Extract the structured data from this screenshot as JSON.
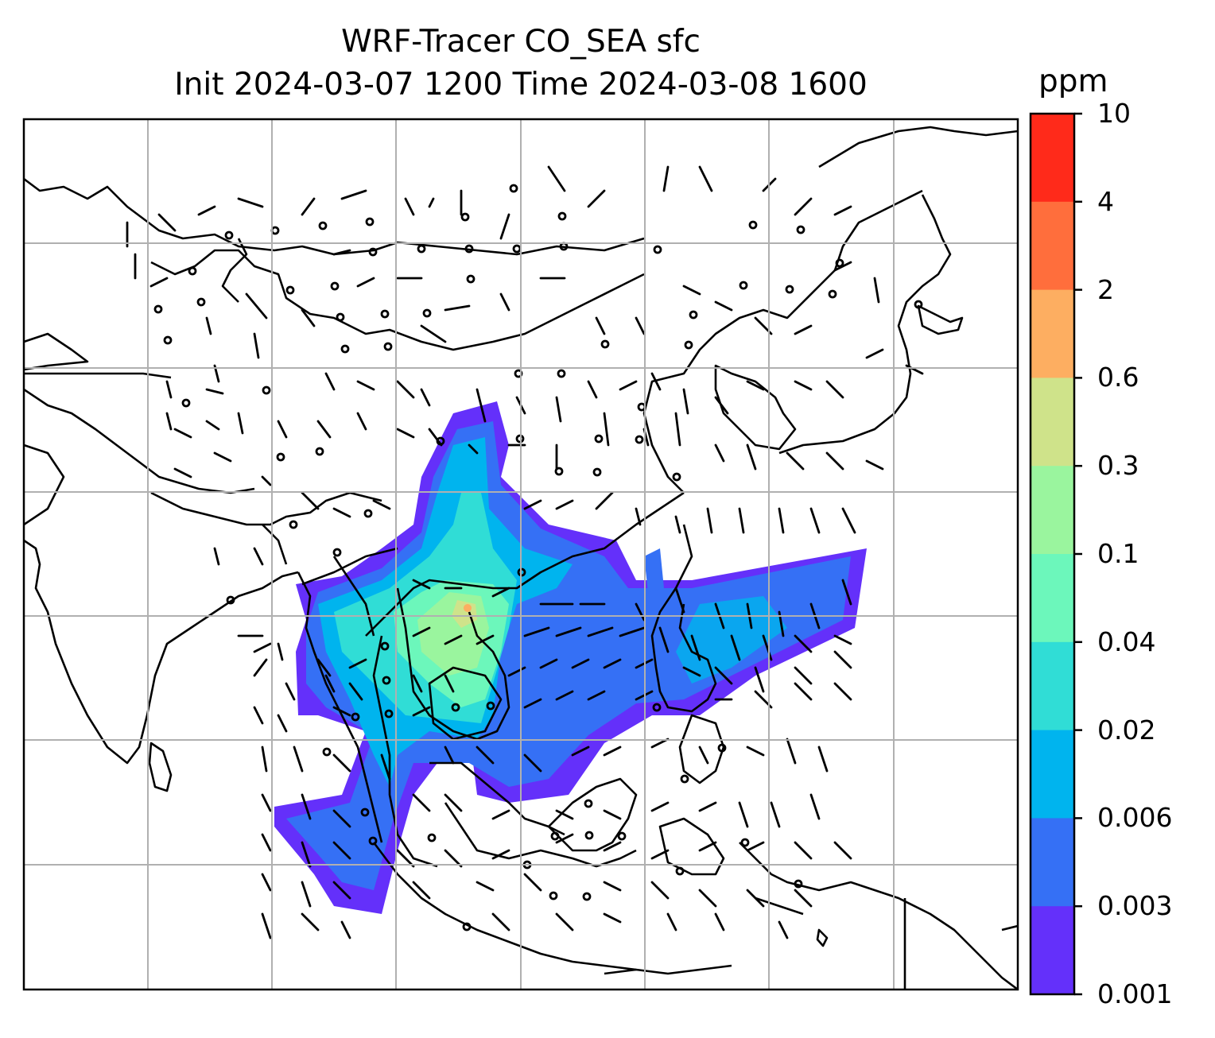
{
  "title": {
    "line1": "WRF-Tracer CO_SEA sfc",
    "line2": "Init 2024-03-07 1200 Time 2024-03-08 1600"
  },
  "colorbar": {
    "unit": "ppm",
    "ticks": [
      "10",
      "4",
      "2",
      "0.6",
      "0.3",
      "0.1",
      "0.04",
      "0.02",
      "0.006",
      "0.003",
      "0.001"
    ],
    "colors": [
      "#ff2a1a",
      "#ff6e3c",
      "#fdae61",
      "#cfe38a",
      "#9af59e",
      "#6cf7bb",
      "#30ddd6",
      "#00b4ee",
      "#3570f5",
      "#6430fa"
    ]
  },
  "map": {
    "gridlines": true,
    "features": [
      "coastlines",
      "country-borders",
      "wind-barbs",
      "tracer-concentration-shading"
    ]
  }
}
